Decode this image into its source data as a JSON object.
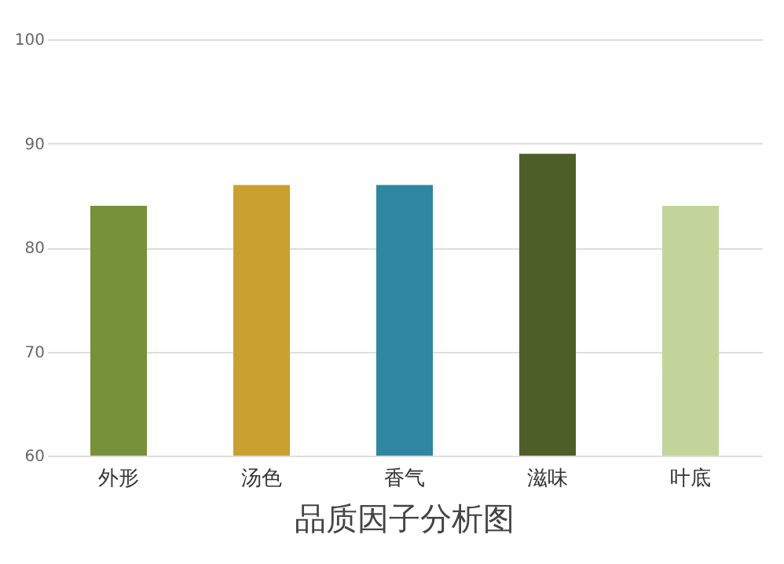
{
  "chart_data": {
    "type": "bar",
    "title": "品质因子分析图",
    "categories": [
      "外形",
      "汤色",
      "香气",
      "滋味",
      "叶底"
    ],
    "values": [
      84,
      86,
      86,
      89,
      84
    ],
    "colors": [
      "#77903a",
      "#c9a030",
      "#2e86a0",
      "#4d5e28",
      "#c3d49a"
    ],
    "ylim": [
      60,
      100
    ],
    "yticks": [
      60,
      70,
      80,
      90,
      100
    ],
    "grid": "y",
    "legend": false
  }
}
